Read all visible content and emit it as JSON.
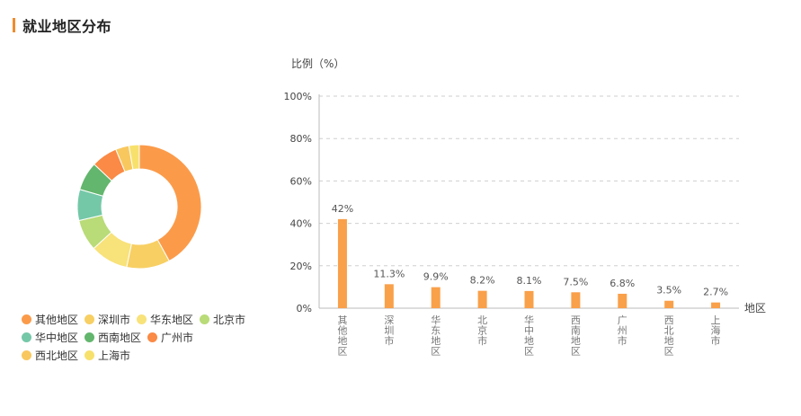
{
  "header": {
    "title": "就业地区分布"
  },
  "chart_data": {
    "type": "bar",
    "ylabel": "比例（%）",
    "xlabel": "地区",
    "ylim": [
      0,
      100
    ],
    "yticks": [
      "0%",
      "20%",
      "40%",
      "60%",
      "80%",
      "100%"
    ],
    "yticks_values": [
      0,
      20,
      40,
      60,
      80,
      100
    ],
    "grid": true,
    "categories": [
      "其他地区",
      "深圳市",
      "华东地区",
      "北京市",
      "华中地区",
      "西南地区",
      "广州市",
      "西北地区",
      "上海市"
    ],
    "values": [
      42,
      11.3,
      9.9,
      8.2,
      8.1,
      7.5,
      6.8,
      3.5,
      2.7
    ],
    "value_labels": [
      "42%",
      "11.3%",
      "9.9%",
      "8.2%",
      "8.1%",
      "7.5%",
      "6.8%",
      "3.5%",
      "2.7%"
    ],
    "bar_color": "#f9a04a"
  },
  "donut": {
    "type": "pie",
    "legend_placement": "bottom-left",
    "slices": [
      {
        "name": "其他地区",
        "value": 42,
        "color": "#fb9b4a"
      },
      {
        "name": "深圳市",
        "value": 11.3,
        "color": "#f7cf63"
      },
      {
        "name": "华东地区",
        "value": 9.9,
        "color": "#f8e27a"
      },
      {
        "name": "北京市",
        "value": 8.2,
        "color": "#b9db78"
      },
      {
        "name": "华中地区",
        "value": 8.1,
        "color": "#74c8a8"
      },
      {
        "name": "西南地区",
        "value": 7.5,
        "color": "#63b66d"
      },
      {
        "name": "广州市",
        "value": 6.8,
        "color": "#fa8a45"
      },
      {
        "name": "西北地区",
        "value": 3.5,
        "color": "#f8c85e"
      },
      {
        "name": "上海市",
        "value": 2.7,
        "color": "#f7e16c"
      }
    ]
  }
}
